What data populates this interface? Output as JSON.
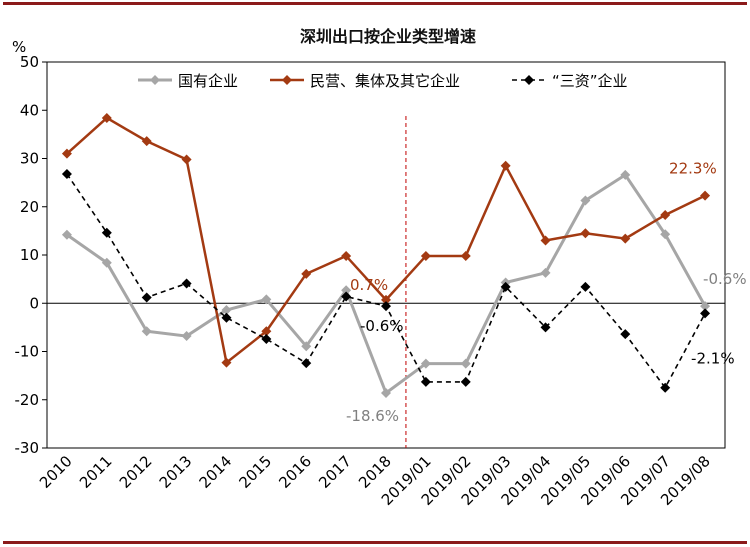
{
  "chart_data": {
    "type": "line",
    "title": "深圳出口按企业类型增速",
    "ylabel": "%",
    "xlabel": "",
    "ylim": [
      -30,
      50
    ],
    "yticks": [
      -30,
      -20,
      -10,
      0,
      10,
      20,
      30,
      40,
      50
    ],
    "grid": false,
    "legend_position": "top",
    "categories": [
      "2010",
      "2011",
      "2012",
      "2013",
      "2014",
      "2015",
      "2016",
      "2017",
      "2018",
      "2019/01",
      "2019/02",
      "2019/03",
      "2019/04",
      "2019/05",
      "2019/06",
      "2019/07",
      "2019/08"
    ],
    "series": [
      {
        "name": "国有企业",
        "color": "#a6a6a6",
        "dash": "solid",
        "marker": "diamond",
        "values": [
          14.2,
          8.4,
          -5.8,
          -6.8,
          -1.4,
          0.8,
          -8.9,
          2.7,
          -18.6,
          -12.5,
          -12.5,
          4.3,
          6.3,
          21.3,
          26.6,
          14.3,
          -0.6
        ]
      },
      {
        "name": "民营、集体及其它企业",
        "color": "#a33a12",
        "dash": "solid",
        "marker": "diamond",
        "values": [
          31.0,
          38.4,
          33.6,
          29.8,
          -12.3,
          -5.8,
          6.1,
          9.8,
          0.7,
          9.8,
          9.8,
          28.5,
          13.0,
          14.5,
          13.4,
          18.3,
          22.3
        ]
      },
      {
        "name": "“三资”企业",
        "color": "#000000",
        "dash": "dashed",
        "marker": "diamond",
        "values": [
          26.8,
          14.6,
          1.2,
          4.1,
          -3.0,
          -7.4,
          -12.4,
          1.4,
          -0.6,
          -16.3,
          -16.3,
          3.4,
          -5.0,
          3.4,
          -6.4,
          -17.5,
          -2.1
        ]
      }
    ],
    "divider_after": "2018",
    "annotations": [
      {
        "text": "0.7%",
        "category": "2018",
        "series": 1,
        "color": "#a33a12"
      },
      {
        "text": "-0.6%",
        "category": "2018",
        "series": 2,
        "color": "#000000"
      },
      {
        "text": "-18.6%",
        "category": "2018",
        "series": 0,
        "color": "#808080"
      },
      {
        "text": "22.3%",
        "category": "2019/08",
        "series": 1,
        "color": "#a33a12"
      },
      {
        "text": "-0.6%",
        "category": "2019/08",
        "series": 0,
        "color": "#808080"
      },
      {
        "text": "-2.1%",
        "category": "2019/08",
        "series": 2,
        "color": "#000000"
      }
    ]
  }
}
